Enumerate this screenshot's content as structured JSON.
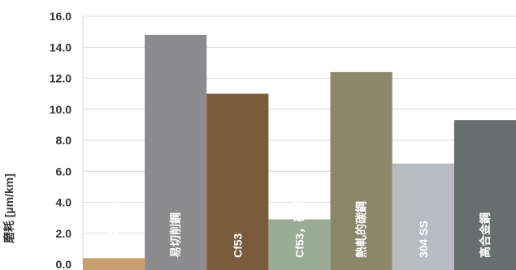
{
  "chart_data": {
    "type": "bar",
    "ylabel": "磨耗 [µm/km]",
    "ylim": [
      0,
      16
    ],
    "yticks": [
      "0.0",
      "2.0",
      "4.0",
      "6.0",
      "8.0",
      "10.0",
      "12.0",
      "14.0",
      "16.0"
    ],
    "grid": true,
    "categories": [
      "硬陽鋁合金",
      "易切削鋼",
      "Cf53",
      "Cf53，硬鍍鉻",
      "熱軋的碳鋼",
      "304 SS",
      "高合金鋼"
    ],
    "values": [
      0.4,
      14.8,
      11.0,
      2.9,
      12.4,
      6.5,
      9.3
    ],
    "colors": [
      "#c8a06e",
      "#8c8c8e",
      "#7a5b3c",
      "#9aac96",
      "#8a876a",
      "#b8bcc2",
      "#676e6e"
    ]
  }
}
